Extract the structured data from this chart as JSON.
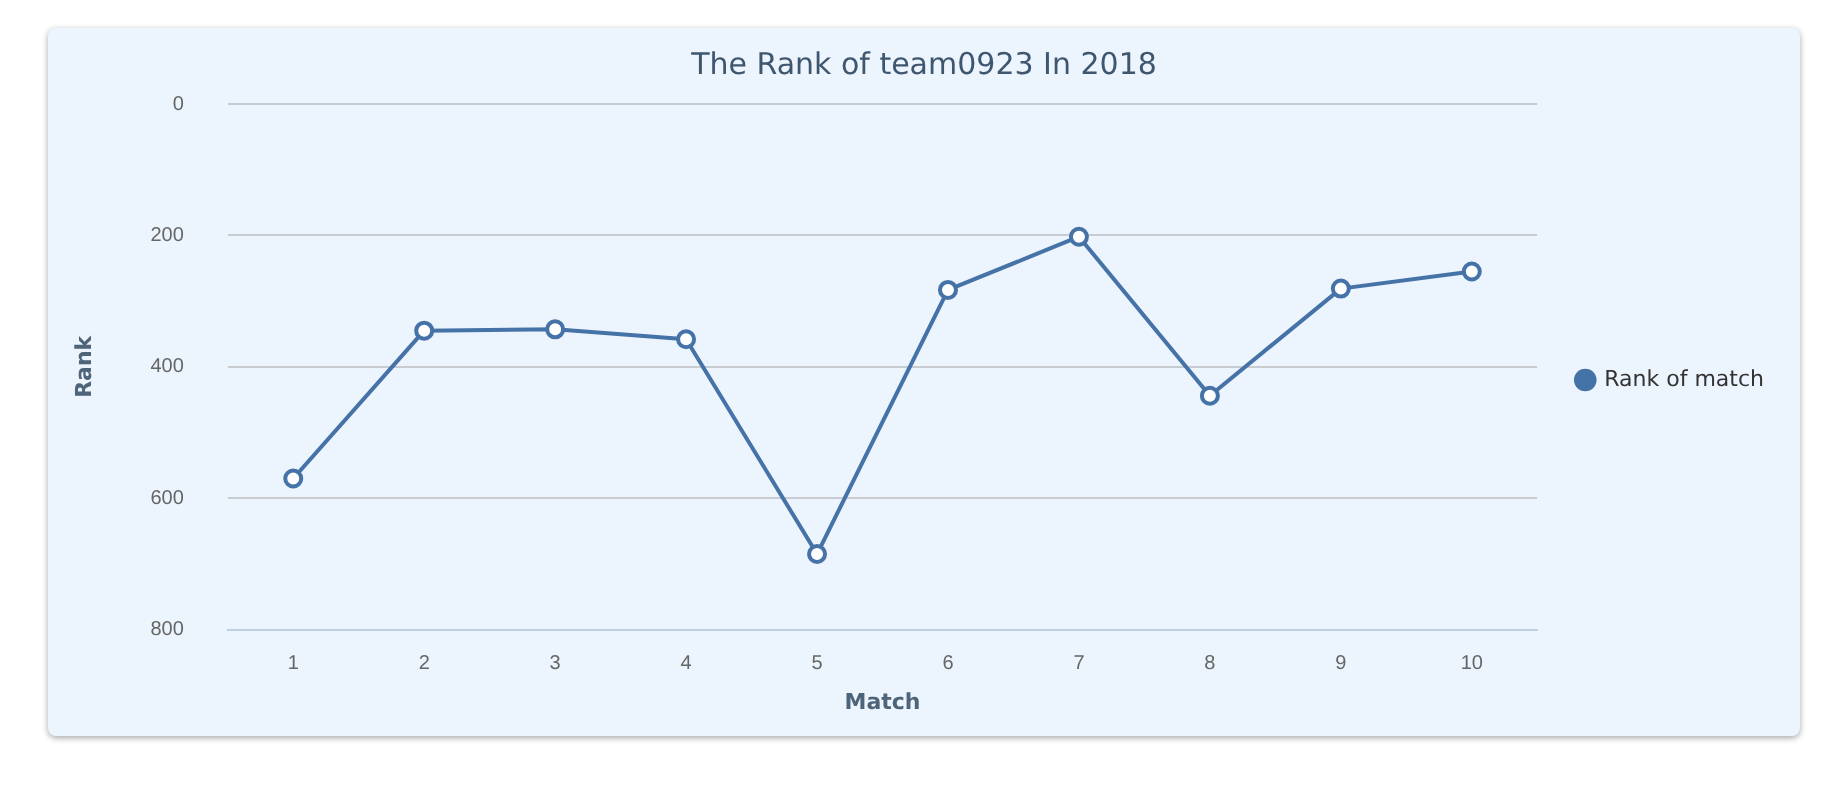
{
  "chart_data": {
    "type": "line",
    "title": "The Rank of team0923 In 2018",
    "xlabel": "Match",
    "ylabel": "Rank",
    "categories": [
      "1",
      "2",
      "3",
      "4",
      "5",
      "6",
      "7",
      "8",
      "9",
      "10"
    ],
    "series": [
      {
        "name": "Rank of match",
        "color": "#4572a7",
        "values": [
          570,
          345,
          343,
          358,
          685,
          283,
          202,
          444,
          281,
          255
        ]
      }
    ],
    "ylim": [
      800,
      0
    ],
    "yticks": [
      0,
      200,
      400,
      600,
      800
    ],
    "grid": "y",
    "legend": "right",
    "marker": "circle",
    "line_style": "solid"
  }
}
